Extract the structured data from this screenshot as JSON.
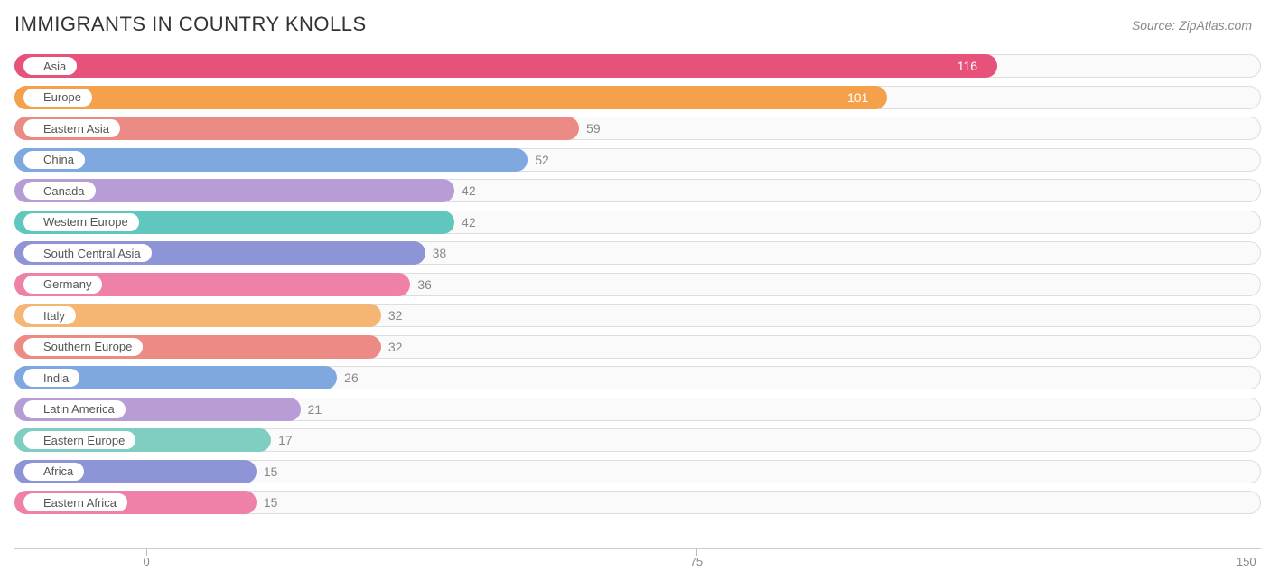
{
  "title": "IMMIGRANTS IN COUNTRY KNOLLS",
  "source": "Source: ZipAtlas.com",
  "chart": {
    "type": "bar-horizontal",
    "x_min": -18,
    "x_max": 152,
    "x_ticks": [
      0,
      75,
      150
    ],
    "track_border_color": "#dddddd",
    "track_bg": "#fafafa",
    "label_pill_bg": "#ffffff",
    "value_color_outside": "#888888",
    "value_color_inside": "#ffffff",
    "bars": [
      {
        "label": "Asia",
        "value": 116,
        "color": "#e6527a",
        "value_inside": true
      },
      {
        "label": "Europe",
        "value": 101,
        "color": "#f5a04a",
        "value_inside": true
      },
      {
        "label": "Eastern Asia",
        "value": 59,
        "color": "#ec8a86",
        "value_inside": false
      },
      {
        "label": "China",
        "value": 52,
        "color": "#7fa8e0",
        "value_inside": false
      },
      {
        "label": "Canada",
        "value": 42,
        "color": "#b79cd6",
        "value_inside": false
      },
      {
        "label": "Western Europe",
        "value": 42,
        "color": "#5fc7bd",
        "value_inside": false
      },
      {
        "label": "South Central Asia",
        "value": 38,
        "color": "#8d95d6",
        "value_inside": false
      },
      {
        "label": "Germany",
        "value": 36,
        "color": "#ef81a8",
        "value_inside": false
      },
      {
        "label": "Italy",
        "value": 32,
        "color": "#f5b573",
        "value_inside": false
      },
      {
        "label": "Southern Europe",
        "value": 32,
        "color": "#ec8a86",
        "value_inside": false
      },
      {
        "label": "India",
        "value": 26,
        "color": "#7fa8e0",
        "value_inside": false
      },
      {
        "label": "Latin America",
        "value": 21,
        "color": "#b79cd6",
        "value_inside": false
      },
      {
        "label": "Eastern Europe",
        "value": 17,
        "color": "#80cdc2",
        "value_inside": false
      },
      {
        "label": "Africa",
        "value": 15,
        "color": "#8d95d6",
        "value_inside": false
      },
      {
        "label": "Eastern Africa",
        "value": 15,
        "color": "#ef81a8",
        "value_inside": false
      }
    ]
  }
}
